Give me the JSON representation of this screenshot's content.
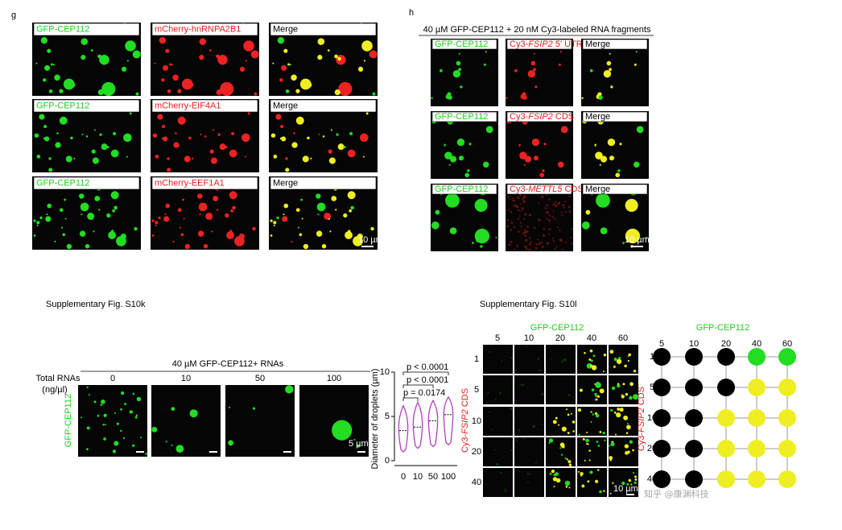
{
  "g": {
    "label": "g",
    "rows": [
      {
        "green": "GFP-CEP112",
        "red": "mCherry-hnRNPA2B1",
        "merge": "Merge"
      },
      {
        "green": "GFP-CEP112",
        "red": "mCherry-EIF4A1",
        "merge": "Merge"
      },
      {
        "green": "GFP-CEP112",
        "red": "mCherry-EEF1A1",
        "merge": "Merge"
      }
    ],
    "scale_bar": "10 µm"
  },
  "h": {
    "label": "h",
    "title": "40 µM GFP-CEP112 + 20 nM Cy3-labeled RNA fragments",
    "rows": [
      {
        "green": "GFP-CEP112",
        "red": [
          "Cy3-",
          "FSIP2",
          " 5' UTR"
        ],
        "merge": "Merge"
      },
      {
        "green": "GFP-CEP112",
        "red": [
          "Cy3-",
          "FSIP2",
          " CDS"
        ],
        "merge": "Merge"
      },
      {
        "green": "GFP-CEP112",
        "red": [
          "Cy3-",
          "METTL5",
          " CDS"
        ],
        "merge": "Merge"
      }
    ],
    "scale_bar": "10 µm"
  },
  "s10k": {
    "caption": "Supplementary Fig. S10k",
    "title": "40 µM GFP-CEP112+ RNAs",
    "row_header": [
      "Total RNAs",
      "(ng/µl)"
    ],
    "columns": [
      "0",
      "10",
      "50",
      "100"
    ],
    "row_label": "GFP-CEP112",
    "scale_bar": "5 µm"
  },
  "chart_data": {
    "type": "violin",
    "ylabel": "Diameter of droplets (µm)",
    "categories": [
      "0",
      "10",
      "50",
      "100"
    ],
    "values": [
      3.4,
      3.8,
      4.5,
      5.2
    ],
    "mins": [
      1,
      1.4,
      1.6,
      1.8
    ],
    "maxs": [
      6.2,
      6.6,
      6.8,
      7.2
    ],
    "color": "#b040c0",
    "ylim": [
      0,
      10
    ],
    "yticks": [
      0,
      5,
      10
    ],
    "p_values": [
      "p = 0.0174",
      "p < 0.0001",
      "p < 0.0001"
    ]
  },
  "s10l": {
    "caption": "Supplementary Fig. S10l",
    "column_header": "GFP-CEP112",
    "columns": [
      "5",
      "10",
      "20",
      "40",
      "60"
    ],
    "rows": [
      "1",
      "5",
      "10",
      "20",
      "40"
    ],
    "row_header": [
      "Cy3-",
      "FSIP2",
      " CDS"
    ],
    "scale_bar": "10 µm"
  },
  "phase_diagram": {
    "title": "GFP-CEP112",
    "columns": [
      "5",
      "10",
      "20",
      "40",
      "60"
    ],
    "rows": [
      "1",
      "5",
      "10",
      "20",
      "40"
    ],
    "row_header": [
      "Cy3-",
      "FSIP2",
      " CDS"
    ],
    "cells": [
      [
        "#000000",
        "#000000",
        "#000000",
        "#22dd22",
        "#22dd22"
      ],
      [
        "#000000",
        "#000000",
        "#000000",
        "#eeee22",
        "#eeee22"
      ],
      [
        "#000000",
        "#000000",
        "#eeee22",
        "#eeee22",
        "#eeee22"
      ],
      [
        "#000000",
        "#000000",
        "#eeee22",
        "#eeee22",
        "#eeee22"
      ],
      [
        "#000000",
        "#000000",
        "#eeee22",
        "#eeee22",
        "#eeee22"
      ]
    ]
  },
  "watermark": "知乎 @康渊科技"
}
